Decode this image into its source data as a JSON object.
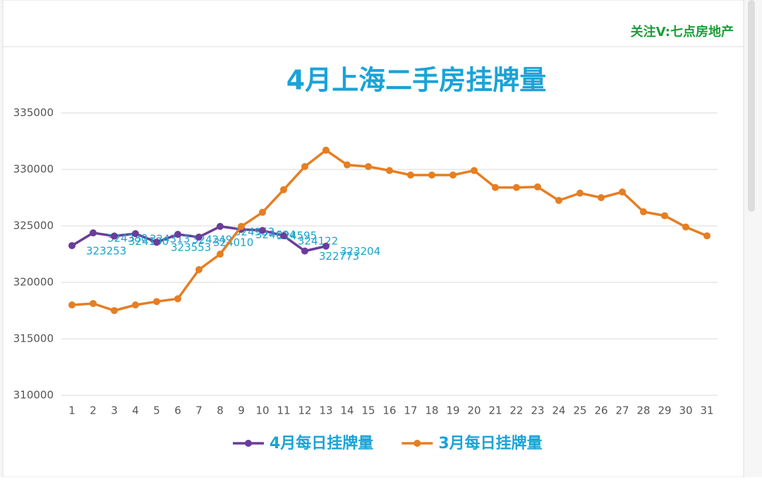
{
  "watermark": "关注V:七点房地产",
  "chart_data": {
    "type": "line",
    "title": "4月上海二手房挂牌量",
    "categories": [
      "1",
      "2",
      "3",
      "4",
      "5",
      "6",
      "7",
      "8",
      "9",
      "10",
      "11",
      "12",
      "13",
      "14",
      "15",
      "16",
      "17",
      "18",
      "19",
      "20",
      "21",
      "22",
      "23",
      "24",
      "25",
      "26",
      "27",
      "28",
      "29",
      "30",
      "31"
    ],
    "series": [
      {
        "name": "4月每日挂牌量",
        "color": "#6a3d9a",
        "labels": true,
        "values": [
          323253,
          324380,
          324100,
          324313,
          323553,
          324249,
          324010,
          324953,
          324694,
          324595,
          324122,
          322773,
          323204,
          null,
          null,
          null,
          null,
          null,
          null,
          null,
          null,
          null,
          null,
          null,
          null,
          null,
          null,
          null,
          null,
          null,
          null
        ]
      },
      {
        "name": "3月每日挂牌量",
        "color": "#e67e22",
        "labels": false,
        "values": [
          318000,
          318125,
          317500,
          318000,
          318300,
          318550,
          321125,
          322500,
          324950,
          326200,
          328200,
          330250,
          331700,
          330400,
          330250,
          329900,
          329500,
          329500,
          329500,
          329900,
          328400,
          328400,
          328450,
          327250,
          327900,
          327500,
          328000,
          326250,
          325900,
          324900,
          324120
        ]
      }
    ],
    "ylim": [
      310000,
      335000
    ],
    "yticks": [
      310000,
      315000,
      320000,
      325000,
      330000,
      335000
    ],
    "grid": true,
    "legend": "bottom"
  }
}
